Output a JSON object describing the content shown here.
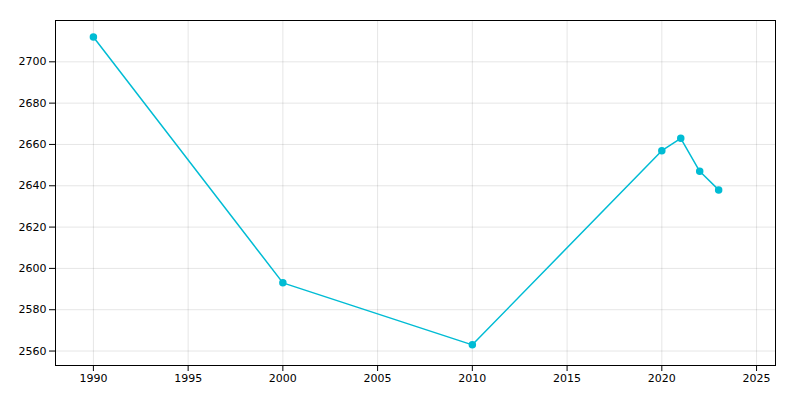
{
  "chart_data": {
    "type": "line",
    "x": [
      1990,
      2000,
      2010,
      2020,
      2021,
      2022,
      2023
    ],
    "values": [
      2712,
      2593,
      2563,
      2657,
      2663,
      2647,
      2638
    ],
    "color": "#00BCD4",
    "marker": "circle",
    "xlim": [
      1988,
      2026
    ],
    "ylim": [
      2553,
      2720
    ],
    "xticks": [
      1990,
      1995,
      2000,
      2005,
      2010,
      2015,
      2020,
      2025
    ],
    "yticks": [
      2560,
      2580,
      2600,
      2620,
      2640,
      2660,
      2680,
      2700
    ],
    "grid": true
  }
}
